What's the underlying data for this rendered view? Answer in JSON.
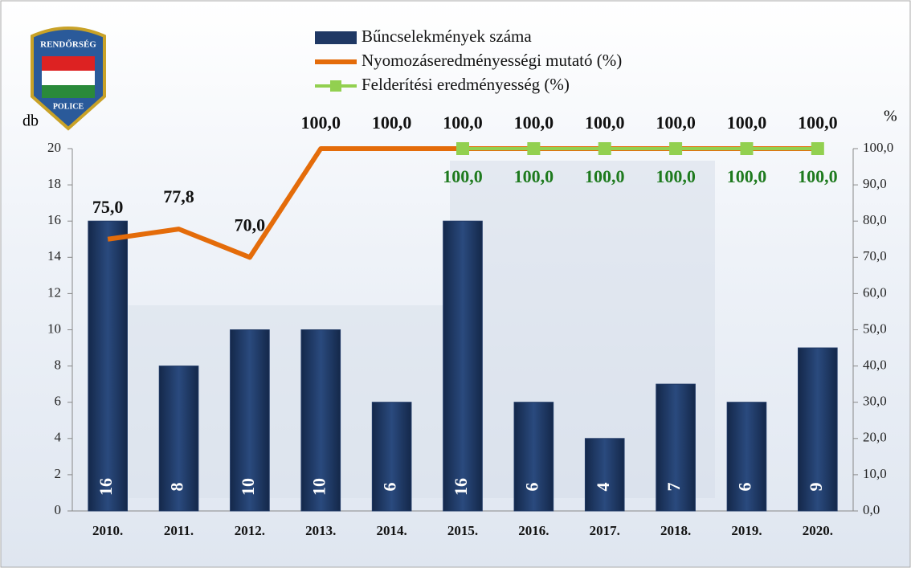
{
  "chart_data": {
    "type": "combo",
    "logo": {
      "top": "RENDŐRSÉG",
      "bottom": "POLICE"
    },
    "ylabel": "db",
    "y2label": "%",
    "categories": [
      "2010.",
      "2011.",
      "2012.",
      "2013.",
      "2014.",
      "2015.",
      "2016.",
      "2017.",
      "2018.",
      "2019.",
      "2020."
    ],
    "series": [
      {
        "name": "Bűncselekmények száma",
        "type": "bar",
        "color": "#1f3864",
        "values": [
          16,
          8,
          10,
          10,
          6,
          16,
          6,
          4,
          7,
          6,
          9
        ]
      },
      {
        "name": "Nyomozáseredményességi mutató (%)",
        "type": "line",
        "axis": "y2",
        "color": "#e46c0a",
        "values": [
          75.0,
          77.8,
          70.0,
          100,
          100,
          100,
          100,
          100,
          100,
          100,
          100
        ],
        "value_labels": [
          "75,0",
          "77,8",
          "70,0",
          "100,0",
          "100,0",
          "100,0",
          "100,0",
          "100,0",
          "100,0",
          "100,0",
          "100,0"
        ]
      },
      {
        "name": "Felderítési eredményesség (%)",
        "type": "line",
        "axis": "y2",
        "color": "#92d050",
        "marker": "square",
        "label_color": "#1e7a1e",
        "values": [
          null,
          null,
          null,
          null,
          null,
          100,
          100,
          100,
          100,
          100,
          100
        ],
        "value_labels": [
          null,
          null,
          null,
          null,
          null,
          "100,0",
          "100,0",
          "100,0",
          "100,0",
          "100,0",
          "100,0"
        ]
      }
    ],
    "ylim": [
      0,
      20
    ],
    "yticks": [
      0,
      2,
      4,
      6,
      8,
      10,
      12,
      14,
      16,
      18,
      20
    ],
    "y2lim": [
      0,
      100
    ],
    "y2ticks": [
      {
        "value": 0,
        "label": "0,0"
      },
      {
        "value": 10,
        "label": "10,0"
      },
      {
        "value": 20,
        "label": "20,0"
      },
      {
        "value": 30,
        "label": "30,0"
      },
      {
        "value": 40,
        "label": "40,0"
      },
      {
        "value": 50,
        "label": "50,0"
      },
      {
        "value": 60,
        "label": "60,0"
      },
      {
        "value": 70,
        "label": "70,0"
      },
      {
        "value": 80,
        "label": "80,0"
      },
      {
        "value": 90,
        "label": "90,0"
      },
      {
        "value": 100,
        "label": "100,0"
      }
    ]
  }
}
